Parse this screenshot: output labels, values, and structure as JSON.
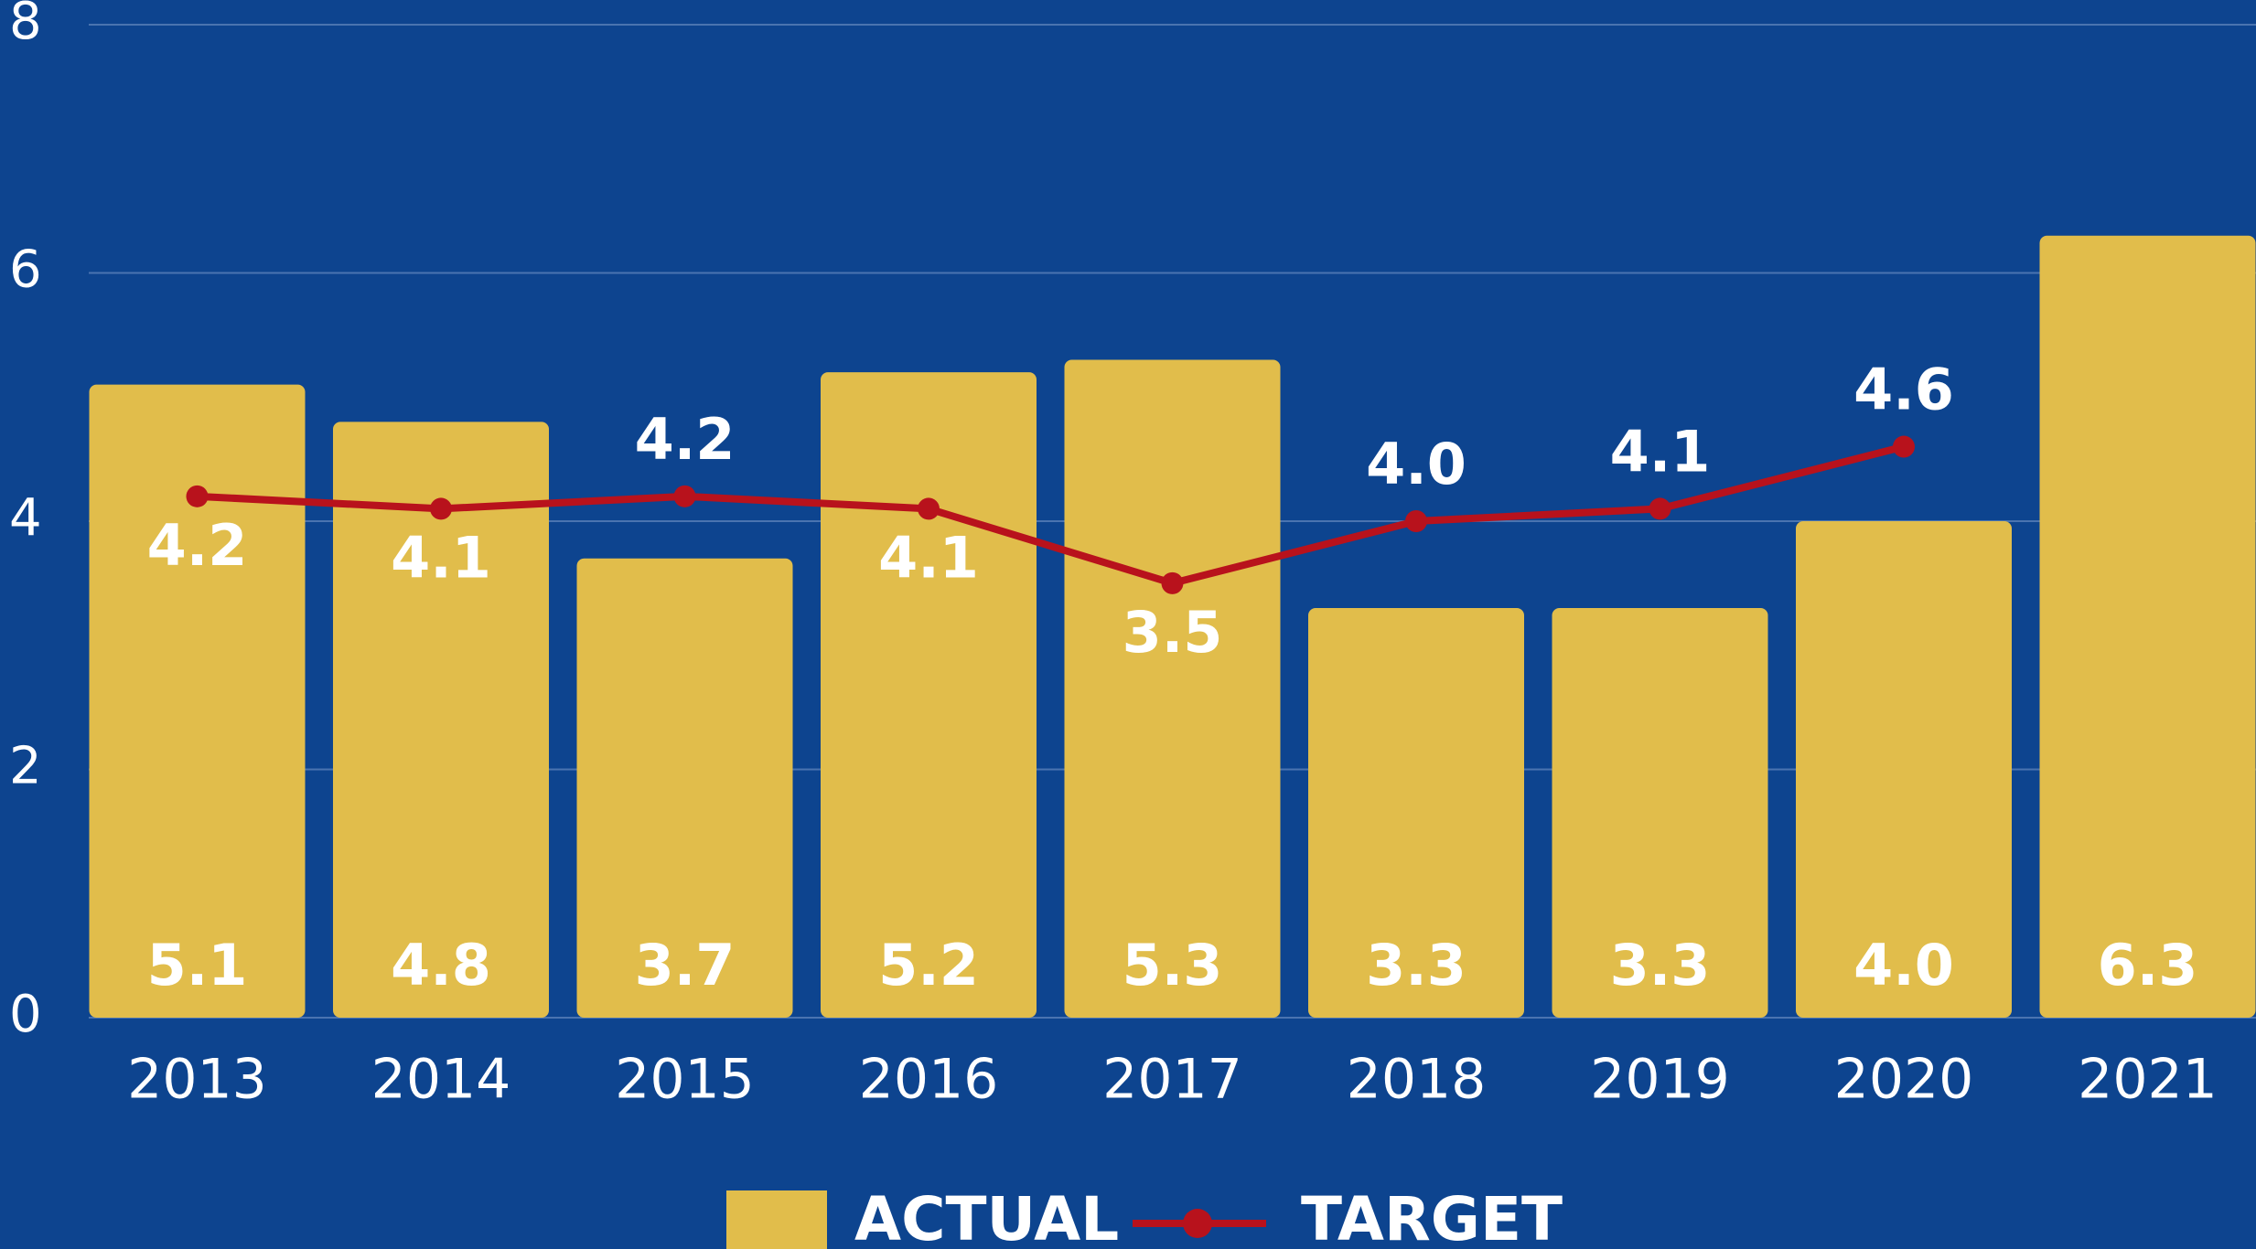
{
  "chart_data": {
    "type": "bar",
    "categories": [
      "2013",
      "2014",
      "2015",
      "2016",
      "2017",
      "2018",
      "2019",
      "2020",
      "2021"
    ],
    "series": [
      {
        "name": "ACTUAL",
        "type": "bar",
        "color": "#e1bd4b",
        "values": [
          5.1,
          4.8,
          3.7,
          5.2,
          5.3,
          3.3,
          3.3,
          4.0,
          6.3
        ],
        "value_labels": [
          "5.1",
          "4.8",
          "3.7",
          "5.2",
          "5.3",
          "3.3",
          "3.3",
          "4.0",
          "6.3"
        ]
      },
      {
        "name": "TARGET",
        "type": "line",
        "color": "#b8121c",
        "values": [
          4.2,
          4.1,
          4.2,
          4.1,
          3.5,
          4.0,
          4.1,
          4.6,
          null
        ],
        "value_labels": [
          "4.2",
          "4.1",
          "4.2",
          "4.1",
          "3.5",
          "4.0",
          "4.1",
          "4.6",
          null
        ]
      }
    ],
    "ylim": [
      0,
      8
    ],
    "yticks": [
      0,
      2,
      4,
      6,
      8
    ],
    "grid": true,
    "legend": "bottom"
  }
}
